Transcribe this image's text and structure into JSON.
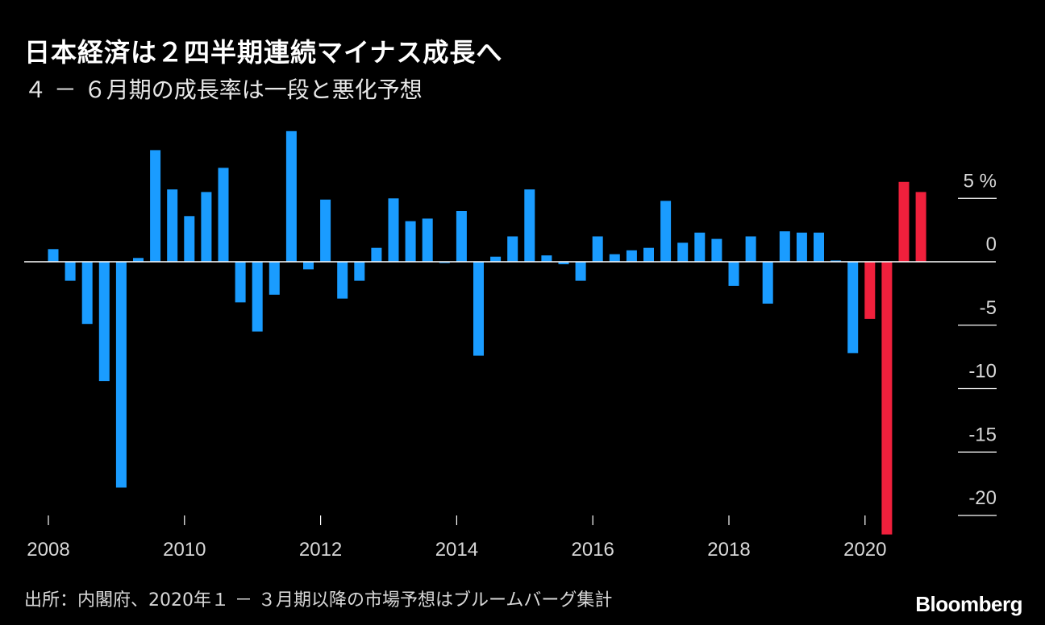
{
  "title": "日本経済は２四半期連続マイナス成長へ",
  "subtitle": "４ － ６月期の成長率は一段と悪化予想",
  "source": "出所：内閣府、2020年１ － ３月期以降の市場予想はブルームバーグ集計",
  "logo": "Bloomberg",
  "colors": {
    "actual": "#1a9cff",
    "forecast": "#f0203c",
    "zero_line": "#ffffff",
    "background": "#000000"
  },
  "chart_data": {
    "type": "bar",
    "title": "日本経済は２四半期連続マイナス成長へ",
    "subtitle": "４ － ６月期の成長率は一段と悪化予想",
    "y_unit": "%",
    "ylim": [
      -21,
      10
    ],
    "y_ticks": [
      {
        "value": 5,
        "label": "5 %"
      },
      {
        "value": 0,
        "label": "0"
      },
      {
        "value": -5,
        "label": "-5"
      },
      {
        "value": -10,
        "label": "-10"
      },
      {
        "value": -15,
        "label": "-15"
      },
      {
        "value": -20,
        "label": "-20"
      }
    ],
    "x_ticks": [
      "2008",
      "2010",
      "2012",
      "2014",
      "2016",
      "2018",
      "2020"
    ],
    "x_start_year": 2008,
    "quarters_per_year": 4,
    "series": [
      {
        "type": "actual",
        "values": [
          1.0,
          -1.5,
          -4.9,
          -9.4,
          -17.8,
          0.3,
          8.8,
          5.7,
          3.6,
          5.5,
          7.4,
          -3.2,
          -5.5,
          -2.6,
          10.3,
          -0.6,
          4.9,
          -2.9,
          -1.5,
          1.1,
          5.0,
          3.2,
          3.4,
          -0.1,
          4.0,
          -7.4,
          0.4,
          2.0,
          5.7,
          0.5,
          -0.2,
          -1.5,
          2.0,
          0.6,
          0.9,
          1.1,
          4.8,
          1.5,
          2.3,
          1.8,
          -1.9,
          2.0,
          -3.3,
          2.4,
          2.3,
          2.3,
          0.1,
          -7.2
        ]
      },
      {
        "type": "forecast",
        "values": [
          -4.5,
          -21.5,
          6.3,
          5.5
        ]
      }
    ]
  }
}
